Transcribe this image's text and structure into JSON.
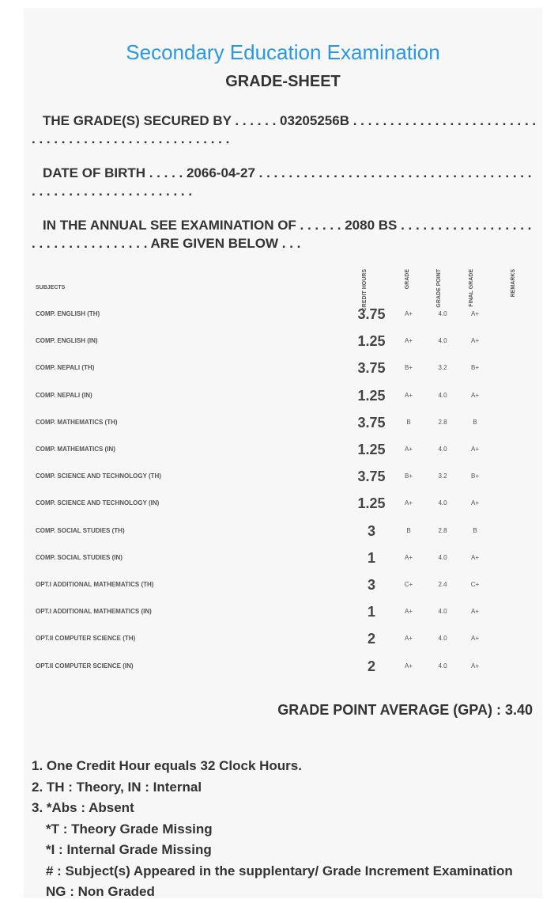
{
  "header": {
    "title": "Secondary Education Examination",
    "subtitle": "GRADE-SHEET"
  },
  "info": {
    "secured_by": "THE GRADE(S) SECURED BY . . . . . . 03205256B . . . . . . . . . . . . . . . . . . . . . . . . . . . . . . . . . . . . . . . . . . . . . . . . . . . .",
    "dob": "DATE OF BIRTH . . . . . 2066-04-27 . . . . . . . . . . . . . . . . . . . . . . . . . . . . . . . . . . . . . . . . . . . . . . . . . . . . . . . . . . .",
    "exam": "IN THE ANNUAL SEE EXAMINATION OF . . . . . . 2080 BS . . . . . . . . . . . . . . . . . . . . . . . . . . . . . . . . . . ARE GIVEN BELOW . . ."
  },
  "table": {
    "headers": {
      "subjects": "SUBJECTS",
      "credit_hours": "CREDIT HOURS",
      "grade": "GRADE",
      "grade_point": "GRADE POINT",
      "final_grade": "FINAL GRADE",
      "remarks": "REMARKS"
    },
    "rows": [
      {
        "subject": "COMP. ENGLISH (TH)",
        "credit": "3.75",
        "grade": "A+",
        "gp": "4.0",
        "final": "A+"
      },
      {
        "subject": "COMP. ENGLISH (IN)",
        "credit": "1.25",
        "grade": "A+",
        "gp": "4.0",
        "final": "A+"
      },
      {
        "subject": "COMP. NEPALI (TH)",
        "credit": "3.75",
        "grade": "B+",
        "gp": "3.2",
        "final": "B+"
      },
      {
        "subject": "COMP. NEPALI (IN)",
        "credit": "1.25",
        "grade": "A+",
        "gp": "4.0",
        "final": "A+"
      },
      {
        "subject": "COMP. MATHEMATICS (TH)",
        "credit": "3.75",
        "grade": "B",
        "gp": "2.8",
        "final": "B"
      },
      {
        "subject": "COMP. MATHEMATICS (IN)",
        "credit": "1.25",
        "grade": "A+",
        "gp": "4.0",
        "final": "A+"
      },
      {
        "subject": "COMP. SCIENCE AND TECHNOLOGY (TH)",
        "credit": "3.75",
        "grade": "B+",
        "gp": "3.2",
        "final": "B+"
      },
      {
        "subject": "COMP. SCIENCE AND TECHNOLOGY (IN)",
        "credit": "1.25",
        "grade": "A+",
        "gp": "4.0",
        "final": "A+"
      },
      {
        "subject": "COMP. SOCIAL STUDIES (TH)",
        "credit": "3",
        "grade": "B",
        "gp": "2.8",
        "final": "B"
      },
      {
        "subject": "COMP. SOCIAL STUDIES (IN)",
        "credit": "1",
        "grade": "A+",
        "gp": "4.0",
        "final": "A+"
      },
      {
        "subject": "OPT.I ADDITIONAL MATHEMATICS (TH)",
        "credit": "3",
        "grade": "C+",
        "gp": "2.4",
        "final": "C+"
      },
      {
        "subject": "OPT.I ADDITIONAL MATHEMATICS (IN)",
        "credit": "1",
        "grade": "A+",
        "gp": "4.0",
        "final": "A+"
      },
      {
        "subject": "OPT.II COMPUTER SCIENCE (TH)",
        "credit": "2",
        "grade": "A+",
        "gp": "4.0",
        "final": "A+"
      },
      {
        "subject": "OPT.II COMPUTER SCIENCE (IN)",
        "credit": "2",
        "grade": "A+",
        "gp": "4.0",
        "final": "A+"
      }
    ]
  },
  "gpa": "GRADE POINT AVERAGE (GPA) : 3.40",
  "notes": [
    "1. One Credit Hour equals 32 Clock Hours.",
    "2. TH : Theory, IN : Internal",
    "3. *Abs : Absent",
    "*T : Theory Grade Missing",
    "*I : Internal Grade Missing",
    "# : Subject(s) Appeared in the supplentary/ Grade Increment Examination",
    "NG : Non Graded"
  ],
  "colors": {
    "title": "#2b97e6",
    "card": "#f7f7f7"
  }
}
